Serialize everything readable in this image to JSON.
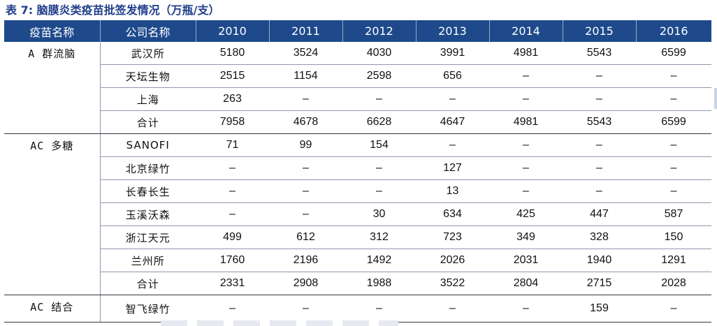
{
  "caption": "表 7: 脑膜炎类疫苗批签发情况（万瓶/支）",
  "columns": [
    "疫苗名称",
    "公司名称",
    "2010",
    "2011",
    "2012",
    "2013",
    "2014",
    "2015",
    "2016"
  ],
  "groups": [
    {
      "name": "A 群流脑",
      "rows": [
        {
          "company": "武汉所",
          "values": [
            "5180",
            "3524",
            "4030",
            "3991",
            "4981",
            "5543",
            "6599"
          ]
        },
        {
          "company": "天坛生物",
          "values": [
            "2515",
            "1154",
            "2598",
            "656",
            "–",
            "–",
            "–"
          ]
        },
        {
          "company": "上海",
          "values": [
            "263",
            "–",
            "–",
            "–",
            "–",
            "–",
            "–"
          ]
        },
        {
          "company": "合计",
          "values": [
            "7958",
            "4678",
            "6628",
            "4647",
            "4981",
            "5543",
            "6599"
          ],
          "total": true
        }
      ]
    },
    {
      "name": "AC 多糖",
      "rows": [
        {
          "company": "SANOFI",
          "values": [
            "71",
            "99",
            "154",
            "–",
            "–",
            "–",
            "–"
          ]
        },
        {
          "company": "北京绿竹",
          "values": [
            "–",
            "–",
            "–",
            "127",
            "–",
            "–",
            "–"
          ]
        },
        {
          "company": "长春长生",
          "values": [
            "–",
            "–",
            "–",
            "13",
            "–",
            "–",
            "–"
          ]
        },
        {
          "company": "玉溪沃森",
          "values": [
            "–",
            "–",
            "30",
            "634",
            "425",
            "447",
            "587"
          ]
        },
        {
          "company": "浙江天元",
          "values": [
            "499",
            "612",
            "312",
            "723",
            "349",
            "328",
            "150"
          ]
        },
        {
          "company": "兰州所",
          "values": [
            "1760",
            "2196",
            "1492",
            "2026",
            "2031",
            "1940",
            "1291"
          ]
        },
        {
          "company": "合计",
          "values": [
            "2331",
            "2908",
            "1988",
            "3522",
            "2804",
            "2715",
            "2028"
          ],
          "total": true
        }
      ]
    },
    {
      "name": "AC 结合",
      "rows": [
        {
          "company": "智飞绿竹",
          "values": [
            "–",
            "–",
            "–",
            "–",
            "–",
            "159",
            "–"
          ]
        }
      ]
    }
  ]
}
